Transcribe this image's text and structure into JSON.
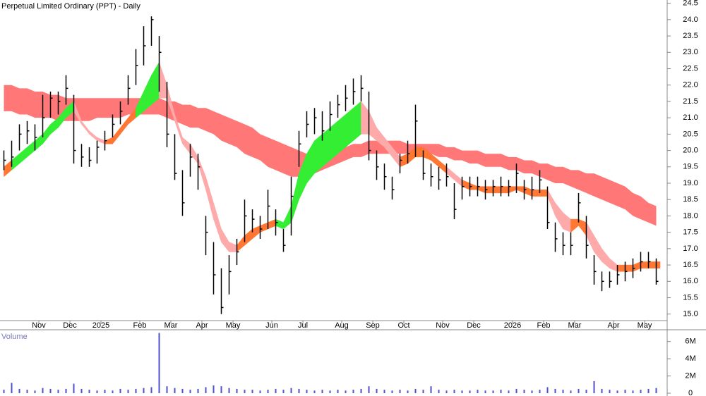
{
  "chart_data": [
    {
      "type": "hlc",
      "title": "Perpetual Limited Ordinary (PPT) - Daily",
      "categories": [
        null,
        null,
        null,
        null,
        null,
        "Nov",
        null,
        null,
        null,
        "Dec",
        null,
        null,
        null,
        "2025",
        null,
        null,
        null,
        null,
        "Feb",
        null,
        null,
        null,
        "Mar",
        null,
        null,
        null,
        "Apr",
        null,
        null,
        null,
        "May",
        null,
        null,
        null,
        null,
        "Jun",
        null,
        null,
        null,
        "Jul",
        null,
        null,
        null,
        null,
        "Aug",
        null,
        null,
        null,
        "Sep",
        null,
        null,
        null,
        "Oct",
        null,
        null,
        null,
        null,
        "Nov",
        null,
        null,
        null,
        "Dec",
        null,
        null,
        null,
        null,
        "2026",
        null,
        null,
        null,
        "Feb",
        null,
        null,
        null,
        "Mar",
        null,
        null,
        null,
        null,
        "Apr",
        null,
        null,
        null,
        "May",
        null
      ],
      "high": [
        20.0,
        20.3,
        20.8,
        20.9,
        20.8,
        21.7,
        21.8,
        21.8,
        22.3,
        21.7,
        20.2,
        20.1,
        20.3,
        20.6,
        21.1,
        21.5,
        22.3,
        23.1,
        23.8,
        24.1,
        23.5,
        22.1,
        20.5,
        19.4,
        20.2,
        19.9,
        18.0,
        17.2,
        16.4,
        16.8,
        17.3,
        18.5,
        18.2,
        18.0,
        18.8,
        18.2,
        17.6,
        19.2,
        20.6,
        21.2,
        21.3,
        21.2,
        21.5,
        21.7,
        22.0,
        22.2,
        22.3,
        21.8,
        20.0,
        19.6,
        19.2,
        19.9,
        20.3,
        21.4,
        20.0,
        19.6,
        19.5,
        19.6,
        19.0,
        19.2,
        19.2,
        19.2,
        19.1,
        19.1,
        19.2,
        19.1,
        19.6,
        19.1,
        19.2,
        19.4,
        18.9,
        17.8,
        17.5,
        17.5,
        18.7,
        18.0,
        16.8,
        16.3,
        16.3,
        16.5,
        16.6,
        16.7,
        16.9,
        16.9,
        16.7
      ],
      "low": [
        19.4,
        19.5,
        20.0,
        20.2,
        20.0,
        20.4,
        21.0,
        21.1,
        21.4,
        19.6,
        19.5,
        19.5,
        19.6,
        20.0,
        20.4,
        20.8,
        21.4,
        22.0,
        22.6,
        23.2,
        21.8,
        20.1,
        19.1,
        18.0,
        19.2,
        18.8,
        16.8,
        15.6,
        15.0,
        15.6,
        16.5,
        17.2,
        17.5,
        17.3,
        17.6,
        17.4,
        16.9,
        17.4,
        19.5,
        20.4,
        20.5,
        20.3,
        20.6,
        21.0,
        21.2,
        21.4,
        21.5,
        19.7,
        19.1,
        18.8,
        18.5,
        19.3,
        19.6,
        19.8,
        19.1,
        18.9,
        18.8,
        18.9,
        17.9,
        18.5,
        18.6,
        18.6,
        18.5,
        18.6,
        18.6,
        18.6,
        18.7,
        18.5,
        18.5,
        18.7,
        17.6,
        16.9,
        16.8,
        16.8,
        17.8,
        16.7,
        15.9,
        15.7,
        15.8,
        15.9,
        16.0,
        16.1,
        16.3,
        16.4,
        15.9
      ],
      "close": [
        19.7,
        19.8,
        20.5,
        20.6,
        20.4,
        21.0,
        21.6,
        21.5,
        21.9,
        20.0,
        19.8,
        19.7,
        20.1,
        20.3,
        20.8,
        21.2,
        21.9,
        22.6,
        23.2,
        24.0,
        23.0,
        20.5,
        19.3,
        18.4,
        19.8,
        19.5,
        17.5,
        16.2,
        15.2,
        16.3,
        16.9,
        18.0,
        17.9,
        17.6,
        18.3,
        17.8,
        17.1,
        18.6,
        20.2,
        20.8,
        21.0,
        20.6,
        21.1,
        21.4,
        21.6,
        21.8,
        21.9,
        20.0,
        19.5,
        19.2,
        18.8,
        19.7,
        19.9,
        20.9,
        19.3,
        19.2,
        19.1,
        19.2,
        18.2,
        18.9,
        18.9,
        18.9,
        18.8,
        18.9,
        18.9,
        18.9,
        19.3,
        18.8,
        18.8,
        19.1,
        17.8,
        17.3,
        17.1,
        17.1,
        18.4,
        17.1,
        16.3,
        16.0,
        16.0,
        16.2,
        16.3,
        16.4,
        16.6,
        16.6,
        16.0
      ],
      "color": "#000000",
      "long_band": {
        "color": "#ff7777",
        "upper": [
          22.0,
          22.0,
          21.9,
          21.9,
          21.8,
          21.8,
          21.7,
          21.7,
          21.6,
          21.6,
          21.6,
          21.6,
          21.6,
          21.6,
          21.6,
          21.6,
          21.6,
          21.6,
          21.6,
          21.6,
          21.6,
          21.5,
          21.5,
          21.4,
          21.4,
          21.3,
          21.3,
          21.2,
          21.1,
          21.0,
          20.9,
          20.8,
          20.7,
          20.5,
          20.4,
          20.3,
          20.2,
          20.1,
          20.0,
          19.9,
          19.9,
          20.0,
          20.0,
          20.1,
          20.1,
          20.2,
          20.2,
          20.3,
          20.3,
          20.3,
          20.3,
          20.3,
          20.2,
          20.2,
          20.2,
          20.2,
          20.2,
          20.1,
          20.1,
          20.0,
          20.0,
          20.0,
          19.9,
          19.9,
          19.9,
          19.8,
          19.8,
          19.7,
          19.7,
          19.6,
          19.6,
          19.5,
          19.5,
          19.4,
          19.4,
          19.3,
          19.3,
          19.2,
          19.1,
          19.0,
          18.9,
          18.7,
          18.6,
          18.4,
          18.3
        ],
        "lower": [
          21.2,
          21.2,
          21.1,
          21.1,
          21.0,
          21.0,
          21.0,
          20.9,
          20.9,
          20.9,
          20.9,
          20.9,
          21.0,
          21.0,
          21.0,
          21.0,
          21.1,
          21.1,
          21.1,
          21.1,
          21.1,
          21.0,
          20.9,
          20.8,
          20.7,
          20.7,
          20.6,
          20.5,
          20.3,
          20.2,
          20.1,
          19.9,
          19.8,
          19.7,
          19.5,
          19.4,
          19.3,
          19.2,
          19.2,
          19.2,
          19.3,
          19.4,
          19.5,
          19.6,
          19.7,
          19.8,
          19.8,
          19.9,
          19.9,
          19.9,
          19.9,
          19.9,
          19.9,
          19.9,
          19.9,
          19.9,
          19.8,
          19.8,
          19.7,
          19.7,
          19.6,
          19.6,
          19.5,
          19.5,
          19.5,
          19.4,
          19.4,
          19.3,
          19.3,
          19.2,
          19.1,
          19.0,
          19.0,
          18.9,
          18.8,
          18.7,
          18.6,
          18.5,
          18.4,
          18.3,
          18.2,
          18.0,
          17.9,
          17.8,
          17.7
        ]
      },
      "short_band": {
        "colors": [
          "#f73",
          "#3e3",
          "#3e3",
          "#3e3",
          "#3e3",
          "#3e3",
          "#3e3",
          "#3e3",
          "#3e3",
          "#faa",
          "#faa",
          "#faa",
          "#faa",
          "#f73",
          "#f73",
          "#f73",
          "#f73",
          "#3e3",
          "#3e3",
          "#3e3",
          "#faa",
          "#faa",
          "#faa",
          "#faa",
          "#faa",
          "#faa",
          "#faa",
          "#faa",
          "#faa",
          "#faa",
          "#f73",
          "#f73",
          "#f73",
          "#f73",
          "#f73",
          "#3e3",
          "#3e3",
          "#3e3",
          "#3e3",
          "#3e3",
          "#3e3",
          "#3e3",
          "#3e3",
          "#3e3",
          "#3e3",
          "#3e3",
          "#faa",
          "#faa",
          "#faa",
          "#faa",
          "#faa",
          "#f73",
          "#f73",
          "#f73",
          "#f73",
          "#f73",
          "#f73",
          "#faa",
          "#faa",
          "#f73",
          "#f73",
          "#f73",
          "#f73",
          "#f73",
          "#f73",
          "#f73",
          "#f73",
          "#f73",
          "#f73",
          "#f73",
          "#faa",
          "#faa",
          "#faa",
          "#f73",
          "#f73",
          "#faa",
          "#faa",
          "#faa",
          "#faa",
          "#f73",
          "#f73",
          "#f73",
          "#f73",
          "#f73",
          "#f73"
        ],
        "upper": [
          19.5,
          19.7,
          19.9,
          20.1,
          20.3,
          20.5,
          20.8,
          21.0,
          21.3,
          21.5,
          20.9,
          20.6,
          20.4,
          20.3,
          20.4,
          20.7,
          21.0,
          21.3,
          21.8,
          22.3,
          22.7,
          22.0,
          21.1,
          20.4,
          20.2,
          19.8,
          19.2,
          18.4,
          17.6,
          17.2,
          17.1,
          17.4,
          17.6,
          17.7,
          17.8,
          17.9,
          17.8,
          18.3,
          19.3,
          19.9,
          20.3,
          20.5,
          20.7,
          20.9,
          21.1,
          21.3,
          21.5,
          21.2,
          20.7,
          20.4,
          20.1,
          19.8,
          19.9,
          20.1,
          20.1,
          19.9,
          19.7,
          19.5,
          19.3,
          19.1,
          19.0,
          18.9,
          18.9,
          18.9,
          18.9,
          18.9,
          18.9,
          18.9,
          18.8,
          18.8,
          18.8,
          18.4,
          18.1,
          17.9,
          17.9,
          17.8,
          17.4,
          17.0,
          16.7,
          16.5,
          16.5,
          16.5,
          16.6,
          16.6,
          16.6
        ],
        "lower": [
          19.2,
          19.4,
          19.6,
          19.8,
          20.0,
          20.2,
          20.5,
          20.7,
          21.0,
          21.2,
          20.8,
          20.5,
          20.3,
          20.2,
          20.2,
          20.5,
          20.8,
          21.0,
          21.2,
          21.4,
          21.6,
          21.6,
          20.9,
          20.2,
          19.9,
          19.6,
          18.8,
          17.9,
          17.2,
          16.9,
          16.9,
          17.1,
          17.3,
          17.5,
          17.6,
          17.7,
          17.6,
          17.8,
          18.5,
          19.0,
          19.3,
          19.5,
          19.7,
          19.9,
          20.1,
          20.3,
          20.5,
          20.5,
          20.3,
          20.1,
          19.8,
          19.5,
          19.6,
          19.8,
          19.8,
          19.7,
          19.5,
          19.3,
          19.1,
          18.9,
          18.8,
          18.8,
          18.7,
          18.7,
          18.7,
          18.7,
          18.8,
          18.7,
          18.6,
          18.6,
          18.6,
          18.0,
          17.6,
          17.5,
          17.7,
          17.4,
          16.9,
          16.6,
          16.4,
          16.3,
          16.3,
          16.3,
          16.4,
          16.4,
          16.4
        ]
      },
      "ylim": [
        14.8,
        24.6
      ],
      "yticks": [
        {
          "value": 15,
          "label": "15.0"
        },
        {
          "value": 15.5,
          "label": "15.5"
        },
        {
          "value": 16,
          "label": "16.0"
        },
        {
          "value": 16.5,
          "label": "16.5"
        },
        {
          "value": 17,
          "label": "17.0"
        },
        {
          "value": 17.5,
          "label": "17.5"
        },
        {
          "value": 18,
          "label": "18.0"
        },
        {
          "value": 18.5,
          "label": "18.5"
        },
        {
          "value": 19,
          "label": "19.0"
        },
        {
          "value": 19.5,
          "label": "19.5"
        },
        {
          "value": 20,
          "label": "20.0"
        },
        {
          "value": 20.5,
          "label": "20.5"
        },
        {
          "value": 21,
          "label": "21.0"
        },
        {
          "value": 21.5,
          "label": "21.5"
        },
        {
          "value": 22,
          "label": "22.0"
        },
        {
          "value": 22.5,
          "label": "22.5"
        },
        {
          "value": 23,
          "label": "23.0"
        },
        {
          "value": 23.5,
          "label": "23.5"
        },
        {
          "value": 24,
          "label": "24.0"
        },
        {
          "value": 24.5,
          "label": "24.5"
        }
      ]
    },
    {
      "type": "bar",
      "title": "Volume",
      "color": "#5050c8",
      "values": [
        400000,
        1200000,
        500000,
        400000,
        300000,
        600000,
        500000,
        400000,
        500000,
        1100000,
        500000,
        400000,
        300000,
        400000,
        300000,
        500000,
        400000,
        500000,
        600000,
        700000,
        7000000,
        800000,
        600000,
        500000,
        400000,
        500000,
        700000,
        900000,
        800000,
        600000,
        500000,
        400000,
        400000,
        300000,
        400000,
        500000,
        400000,
        600000,
        500000,
        400000,
        300000,
        400000,
        300000,
        400000,
        300000,
        400000,
        500000,
        800000,
        500000,
        400000,
        300000,
        400000,
        300000,
        500000,
        400000,
        800000,
        400000,
        300000,
        400000,
        300000,
        300000,
        400000,
        300000,
        300000,
        400000,
        300000,
        500000,
        400000,
        300000,
        400000,
        700000,
        500000,
        400000,
        300000,
        500000,
        400000,
        1400000,
        500000,
        400000,
        300000,
        400000,
        300000,
        400000,
        500000,
        600000
      ],
      "ylim": [
        0,
        7200000
      ],
      "yticks": [
        0,
        {
          "value": 2000000,
          "label": "2M"
        },
        {
          "value": 4000000,
          "label": "4M"
        },
        {
          "value": 6000000,
          "label": "6M"
        }
      ]
    }
  ]
}
